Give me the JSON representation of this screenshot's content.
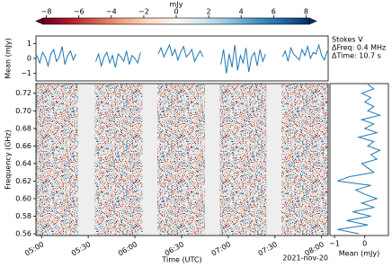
{
  "chart_data": [
    {
      "type": "colorbar",
      "label": "mJy",
      "clim": [
        -8.2,
        8.2
      ],
      "colormap": [
        "#67001f",
        "#b2182b",
        "#d6604d",
        "#f4a582",
        "#fddbc7",
        "#f7f7f7",
        "#d1e5f0",
        "#92c5de",
        "#4393c3",
        "#2166ac",
        "#053061"
      ],
      "ticks": [
        {
          "value": -8,
          "label": "−8"
        },
        {
          "value": -6,
          "label": "−6"
        },
        {
          "value": -4,
          "label": "−4"
        },
        {
          "value": -2,
          "label": "−2"
        },
        0,
        2,
        4,
        6,
        8
      ]
    },
    {
      "type": "line",
      "ylabel": "Mean (mJy)",
      "color": "#1f77b4",
      "xlim": [
        4.94,
        8.07
      ],
      "ylim": [
        -1.5,
        1.5
      ],
      "yticks": [
        {
          "value": -1,
          "label": "−1"
        },
        0,
        1
      ],
      "annotations": [
        "Stokes V",
        "ΔFreq: 0.4 MHz",
        "ΔTime: 10.7 s"
      ],
      "x": [
        4.95,
        4.98,
        5.01,
        5.04,
        5.07,
        5.1,
        5.13,
        5.16,
        5.19,
        5.22,
        5.25,
        5.28,
        5.31,
        5.34,
        5.37,
        5.45,
        5.58,
        5.61,
        5.64,
        5.67,
        5.7,
        5.73,
        5.76,
        5.79,
        5.82,
        5.85,
        5.88,
        5.91,
        5.94,
        5.97,
        6.0,
        6.03,
        6.06,
        6.15,
        6.25,
        6.28,
        6.31,
        6.34,
        6.37,
        6.4,
        6.43,
        6.46,
        6.49,
        6.52,
        6.55,
        6.58,
        6.61,
        6.64,
        6.67,
        6.7,
        6.73,
        6.83,
        6.92,
        6.95,
        6.98,
        7.01,
        7.04,
        7.07,
        7.1,
        7.13,
        7.16,
        7.19,
        7.22,
        7.25,
        7.28,
        7.31,
        7.34,
        7.37,
        7.4,
        7.49,
        7.58,
        7.61,
        7.64,
        7.67,
        7.7,
        7.73,
        7.76,
        7.79,
        7.82,
        7.85,
        7.88,
        7.91,
        7.94,
        7.97,
        8.0,
        8.03,
        8.06
      ],
      "values": [
        0.2,
        -0.3,
        0.4,
        0.1,
        -0.5,
        0.3,
        0.6,
        -0.2,
        0.1,
        0.8,
        -0.4,
        0.2,
        0.5,
        -0.1,
        0.3,
        null,
        -0.2,
        0.3,
        -0.5,
        0.1,
        0.4,
        -0.3,
        0.2,
        -0.6,
        0.3,
        0.1,
        -0.2,
        0.5,
        -0.4,
        0.2,
        0.0,
        -0.3,
        0.4,
        null,
        0.3,
        0.7,
        0.1,
        0.5,
        0.9,
        0.2,
        0.6,
        -0.1,
        0.4,
        0.8,
        0.1,
        0.3,
        0.6,
        -0.2,
        0.2,
        0.5,
        0.1,
        null,
        -0.4,
        0.6,
        -1.0,
        0.3,
        -0.6,
        0.9,
        -0.8,
        0.2,
        -0.3,
        0.7,
        -0.9,
        0.1,
        0.4,
        -0.5,
        0.6,
        -0.2,
        0.3,
        null,
        0.1,
        0.5,
        -0.2,
        0.7,
        0.3,
        0.1,
        -0.1,
        0.6,
        0.2,
        0.8,
        0.0,
        0.4,
        0.3,
        0.9,
        0.2,
        -0.1,
        0.5
      ]
    },
    {
      "type": "heatmap",
      "xlabel": "Time (UTC)",
      "ylabel": "Frequency (GHz)",
      "annotation": "2021-nov-20",
      "xlim": [
        4.94,
        8.07
      ],
      "ylim": [
        0.558,
        0.731
      ],
      "xticks": [
        {
          "value": 5.0,
          "label": "05:00"
        },
        {
          "value": 5.5,
          "label": "05:30"
        },
        {
          "value": 6.0,
          "label": "06:00"
        },
        {
          "value": 6.5,
          "label": "06:30"
        },
        {
          "value": 7.0,
          "label": "07:00"
        },
        {
          "value": 7.5,
          "label": "07:30"
        },
        {
          "value": 8.0,
          "label": "08:00"
        }
      ],
      "yticks": [
        0.56,
        0.58,
        {
          "value": 0.6,
          "label": "0.60"
        },
        0.62,
        0.64,
        0.66,
        0.68,
        {
          "value": 0.7,
          "label": "0.70"
        },
        0.72
      ],
      "scans": [
        [
          4.94,
          5.39
        ],
        [
          5.57,
          6.08
        ],
        [
          6.24,
          6.75
        ],
        [
          6.91,
          7.41
        ],
        [
          7.57,
          8.07
        ]
      ]
    },
    {
      "type": "spectrum",
      "xlabel": "Mean (mJy)",
      "color": "#1f77b4",
      "xlim": [
        -1.15,
        0.78
      ],
      "ylim": [
        0.558,
        0.731
      ],
      "xticks": [
        {
          "value": -1,
          "label": "−1"
        },
        0
      ],
      "freq": [
        0.56,
        0.565,
        0.57,
        0.575,
        0.58,
        0.585,
        0.59,
        0.595,
        0.6,
        0.605,
        0.61,
        0.615,
        0.62,
        0.625,
        0.63,
        0.635,
        0.64,
        0.645,
        0.65,
        0.655,
        0.66,
        0.665,
        0.67,
        0.675,
        0.68,
        0.685,
        0.69,
        0.695,
        0.7,
        0.705,
        0.71,
        0.715,
        0.72,
        0.725,
        0.73
      ],
      "values": [
        -0.2,
        -0.9,
        0.1,
        -0.6,
        0.2,
        -0.4,
        0.3,
        -0.1,
        0.4,
        0.0,
        -0.3,
        0.2,
        -0.9,
        -0.5,
        0.3,
        0.1,
        -0.1,
        0.4,
        0.2,
        0.5,
        0.1,
        0.3,
        -0.2,
        0.4,
        0.0,
        0.3,
        -0.1,
        0.5,
        0.1,
        0.3,
        0.0,
        0.2,
        -0.1,
        0.3,
        0.1
      ]
    }
  ]
}
